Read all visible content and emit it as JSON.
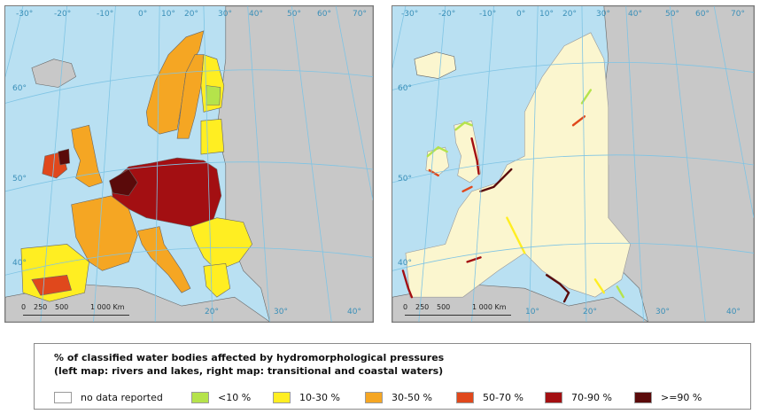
{
  "colors": {
    "sea": "#b9e0f2",
    "non_eu_land": "#c8c8c8",
    "eu_land_right": "#fbf6cf",
    "graticule": "#7fc4e4",
    "degree_label": "#3a8fb8"
  },
  "left_map": {
    "longitude_labels": [
      "-30°",
      "-20°",
      "-10°",
      "0°",
      "10°",
      "20°",
      "30°",
      "40°",
      "50°",
      "60°",
      "70°"
    ],
    "latitude_labels": [
      "60°",
      "50°",
      "40°"
    ],
    "bottom_labels": [
      "20°",
      "30°",
      "40°"
    ],
    "scale": {
      "start": "0",
      "mid": "250",
      "half": "500",
      "end": "1 000 Km"
    }
  },
  "right_map": {
    "longitude_labels": [
      "-30°",
      "-20°",
      "-10°",
      "0°",
      "10°",
      "20°",
      "30°",
      "40°",
      "50°",
      "60°",
      "70°"
    ],
    "latitude_labels": [
      "60°",
      "50°",
      "40°"
    ],
    "bottom_labels": [
      "10°",
      "20°",
      "30°",
      "40°"
    ],
    "scale": {
      "start": "0",
      "mid": "250",
      "half": "500",
      "end": "1 000 Km"
    }
  },
  "legend": {
    "title_line1": "% of classified water bodies affected by hydromorphological pressures",
    "title_line2": "(left map: rivers and lakes, right map: transitional and coastal waters)",
    "items": [
      {
        "label": "no data reported",
        "color": "#ffffff"
      },
      {
        "label": "<10 %",
        "color": "#b5e34b"
      },
      {
        "label": "10-30 %",
        "color": "#ffee22"
      },
      {
        "label": "30-50 %",
        "color": "#f5a623"
      },
      {
        "label": "50-70 %",
        "color": "#e0481c"
      },
      {
        "label": "70-90 %",
        "color": "#a30f12"
      },
      {
        "label": ">=90 %",
        "color": "#5a0a0a"
      }
    ]
  },
  "left_regions": [
    {
      "name": "iceland",
      "class": "grey"
    },
    {
      "name": "norway-sweden",
      "class": "orange"
    },
    {
      "name": "finland",
      "class": "yellow"
    },
    {
      "name": "uk",
      "class": "orange"
    },
    {
      "name": "ireland",
      "class": "red"
    },
    {
      "name": "france",
      "class": "orange"
    },
    {
      "name": "iberia",
      "class": "yellow"
    },
    {
      "name": "central-europe",
      "class": "dark-red"
    },
    {
      "name": "italy",
      "class": "orange"
    },
    {
      "name": "balkans",
      "class": "yellow"
    },
    {
      "name": "east",
      "class": "grey"
    }
  ]
}
